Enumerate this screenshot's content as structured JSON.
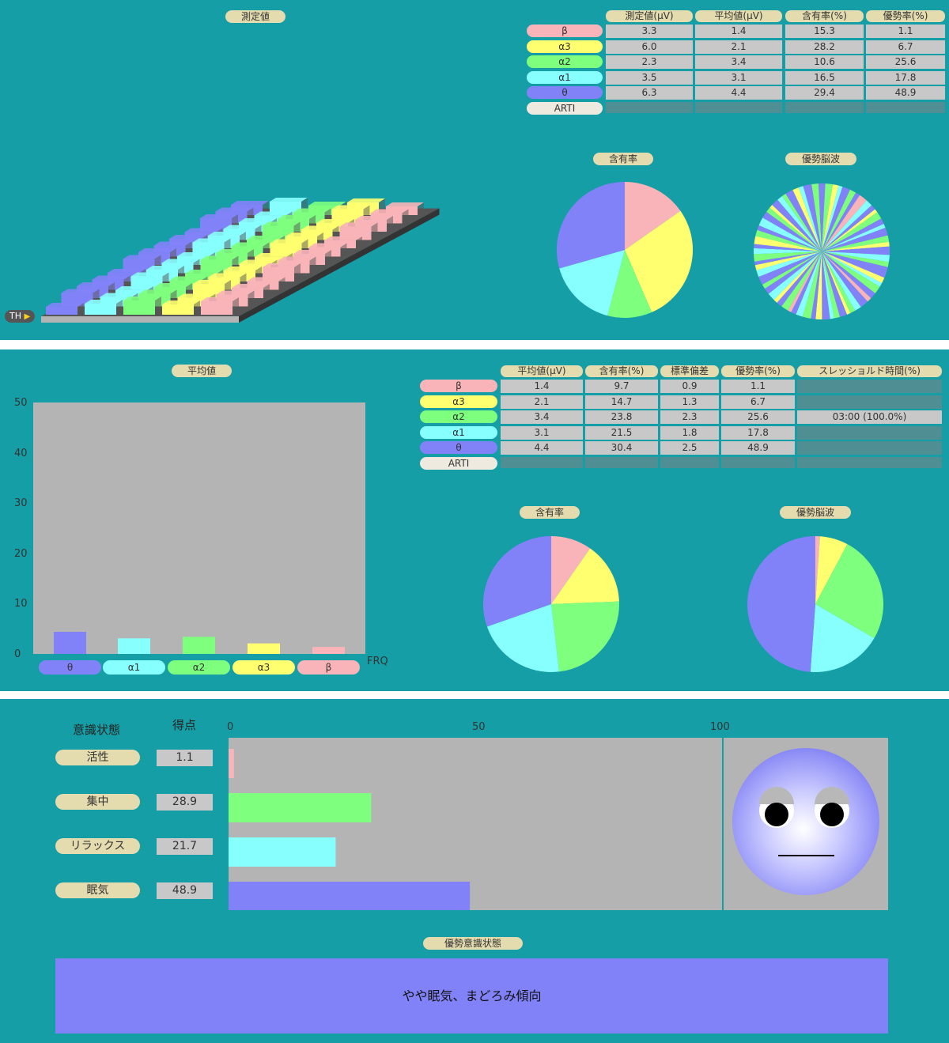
{
  "colors": {
    "beta": "#f8b4b8",
    "alpha3": "#ffff70",
    "alpha2": "#7eff7e",
    "alpha1": "#88ffff",
    "theta": "#8282f8",
    "arti": "#eeeae0",
    "panel_bg": "#159ea6",
    "pill": "#e4dcae"
  },
  "band_labels": [
    "β",
    "α3",
    "α2",
    "α1",
    "θ",
    "ARTI"
  ],
  "band_keys": [
    "beta",
    "alpha3",
    "alpha2",
    "alpha1",
    "theta",
    "arti"
  ],
  "panel1": {
    "title": "測定値",
    "th_label": "TH",
    "table": {
      "headers": [
        "測定値(μV)",
        "平均値(μV)",
        "含有率(%)",
        "優勢率(%)"
      ],
      "rows": [
        [
          "3.3",
          "1.4",
          "15.3",
          "1.1"
        ],
        [
          "6.0",
          "2.1",
          "28.2",
          "6.7"
        ],
        [
          "2.3",
          "3.4",
          "10.6",
          "25.6"
        ],
        [
          "3.5",
          "3.1",
          "16.5",
          "17.8"
        ],
        [
          "6.3",
          "4.4",
          "29.4",
          "48.9"
        ],
        [
          "",
          "",
          "",
          ""
        ]
      ]
    },
    "pie1_title": "含有率",
    "pie2_title": "優勢脳波"
  },
  "panel2": {
    "title": "平均値",
    "y_ticks": [
      "50",
      "40",
      "30",
      "20",
      "10",
      "0"
    ],
    "x_label": "FRQ",
    "bar_order": [
      "θ",
      "α1",
      "α2",
      "α3",
      "β"
    ],
    "table": {
      "headers": [
        "平均値(μV)",
        "含有率(%)",
        "標準偏差",
        "優勢率(%)",
        "スレッショルド時間(%)"
      ],
      "rows": [
        [
          "1.4",
          "9.7",
          "0.9",
          "1.1",
          ""
        ],
        [
          "2.1",
          "14.7",
          "1.3",
          "6.7",
          ""
        ],
        [
          "3.4",
          "23.8",
          "2.3",
          "25.6",
          "03:00 (100.0%)"
        ],
        [
          "3.1",
          "21.5",
          "1.8",
          "17.8",
          ""
        ],
        [
          "4.4",
          "30.4",
          "2.5",
          "48.9",
          ""
        ],
        [
          "",
          "",
          "",
          "",
          ""
        ]
      ]
    },
    "pie1_title": "含有率",
    "pie2_title": "優勢脳波"
  },
  "panel3": {
    "state_header": "意識状態",
    "score_header": "得点",
    "scale_ticks": [
      "0",
      "50",
      "100"
    ],
    "states": [
      {
        "label": "活性",
        "score": "1.1",
        "value": 1.1,
        "color": "#f8b4b8"
      },
      {
        "label": "集中",
        "score": "28.9",
        "value": 28.9,
        "color": "#7eff7e"
      },
      {
        "label": "リラックス",
        "score": "21.7",
        "value": 21.7,
        "color": "#88ffff"
      },
      {
        "label": "眠気",
        "score": "48.9",
        "value": 48.9,
        "color": "#8282f8"
      }
    ],
    "dominant_title": "優勢意識状態",
    "dominant_text": "やや眠気、まどろみ傾向"
  },
  "chart_data": [
    {
      "type": "bar",
      "title": "平均値",
      "categories": [
        "θ",
        "α1",
        "α2",
        "α3",
        "β"
      ],
      "values": [
        4.4,
        3.1,
        3.4,
        2.1,
        1.4
      ],
      "xlabel": "FRQ",
      "ylabel": "",
      "ylim": [
        0,
        50
      ]
    },
    {
      "type": "pie",
      "title": "含有率",
      "categories": [
        "β",
        "α3",
        "α2",
        "α1",
        "θ"
      ],
      "values": [
        15.3,
        28.2,
        10.6,
        16.5,
        29.4
      ]
    },
    {
      "type": "pie",
      "title": "含有率",
      "categories": [
        "β",
        "α3",
        "α2",
        "α1",
        "θ"
      ],
      "values": [
        9.7,
        14.7,
        23.8,
        21.5,
        30.4
      ]
    },
    {
      "type": "pie",
      "title": "優勢脳波",
      "categories": [
        "β",
        "α3",
        "α2",
        "α1",
        "θ"
      ],
      "values": [
        1.1,
        6.7,
        25.6,
        17.8,
        48.9
      ]
    },
    {
      "type": "bar",
      "title": "",
      "categories": [
        "活性",
        "集中",
        "リラックス",
        "眠気"
      ],
      "values": [
        1.1,
        28.9,
        21.7,
        48.9
      ],
      "xlim": [
        0,
        100
      ]
    }
  ]
}
